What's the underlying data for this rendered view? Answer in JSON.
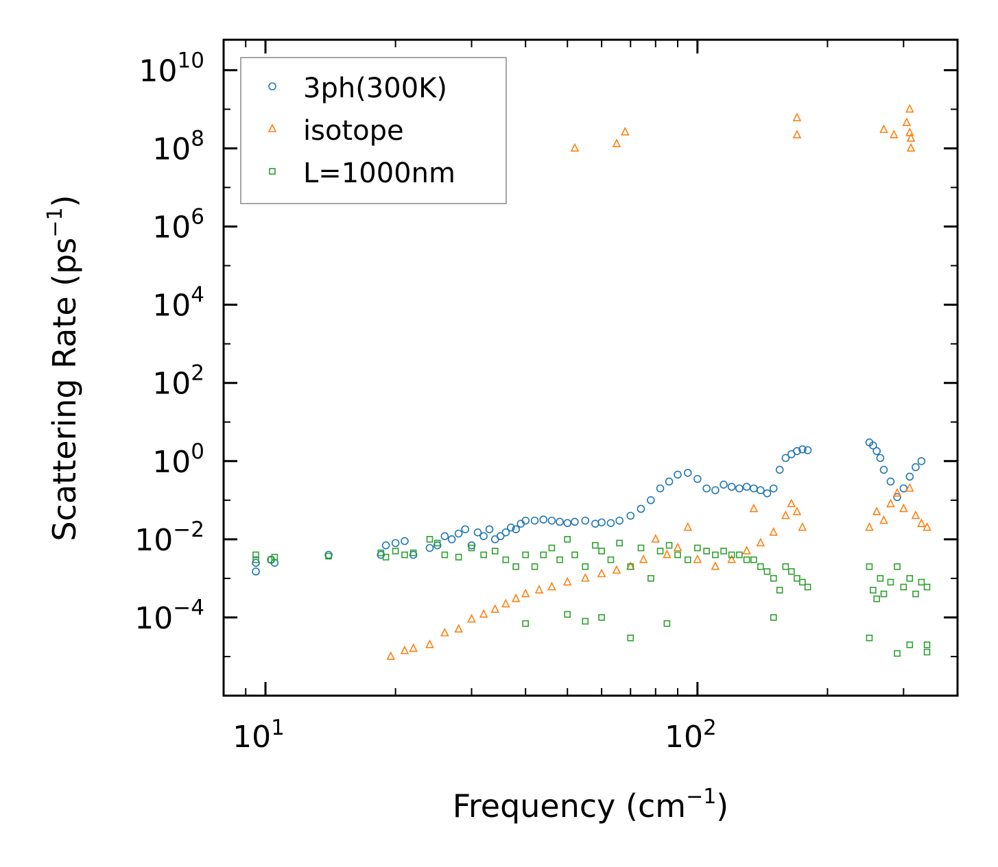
{
  "chart_data": {
    "type": "scatter",
    "title": "",
    "xlabel": "Frequency (cm",
    "xlabel_sup": "−1",
    "xlabel_close": ")",
    "ylabel": "Scattering Rate (ps",
    "ylabel_sup": "−1",
    "ylabel_close": ")",
    "xscale": "log",
    "yscale": "log",
    "xlim": [
      8,
      400
    ],
    "ylim": [
      1e-06,
      60000000000
    ],
    "x_ticks": [
      {
        "value": 10,
        "base": "10",
        "exp": "1"
      },
      {
        "value": 100,
        "base": "10",
        "exp": "2"
      }
    ],
    "y_ticks": [
      {
        "value": 0.0001,
        "base": "10",
        "exp": "−4"
      },
      {
        "value": 0.01,
        "base": "10",
        "exp": "−2"
      },
      {
        "value": 1,
        "base": "10",
        "exp": "0"
      },
      {
        "value": 100,
        "base": "10",
        "exp": "2"
      },
      {
        "value": 10000,
        "base": "10",
        "exp": "4"
      },
      {
        "value": 1000000,
        "base": "10",
        "exp": "6"
      },
      {
        "value": 100000000,
        "base": "10",
        "exp": "8"
      },
      {
        "value": 10000000000,
        "base": "10",
        "exp": "10"
      }
    ],
    "legend_position": "top-left",
    "series": [
      {
        "name": "3ph(300K)",
        "marker": "circle",
        "color": "#1f77b4",
        "points": [
          [
            9.5,
            0.0015
          ],
          [
            9.5,
            0.0025
          ],
          [
            10.3,
            0.003
          ],
          [
            10.5,
            0.0025
          ],
          [
            14,
            0.004
          ],
          [
            18.5,
            0.004
          ],
          [
            19,
            0.007
          ],
          [
            20,
            0.008
          ],
          [
            21,
            0.009
          ],
          [
            22,
            0.004
          ],
          [
            24,
            0.006
          ],
          [
            25,
            0.007
          ],
          [
            26,
            0.012
          ],
          [
            27,
            0.01
          ],
          [
            28,
            0.014
          ],
          [
            29,
            0.018
          ],
          [
            30,
            0.007
          ],
          [
            31,
            0.015
          ],
          [
            32,
            0.012
          ],
          [
            33,
            0.018
          ],
          [
            34,
            0.01
          ],
          [
            35,
            0.012
          ],
          [
            36,
            0.015
          ],
          [
            37,
            0.02
          ],
          [
            38,
            0.018
          ],
          [
            39,
            0.025
          ],
          [
            40,
            0.03
          ],
          [
            42,
            0.03
          ],
          [
            44,
            0.032
          ],
          [
            46,
            0.03
          ],
          [
            48,
            0.028
          ],
          [
            50,
            0.026
          ],
          [
            52,
            0.028
          ],
          [
            55,
            0.03
          ],
          [
            58,
            0.025
          ],
          [
            60,
            0.027
          ],
          [
            63,
            0.026
          ],
          [
            66,
            0.03
          ],
          [
            70,
            0.04
          ],
          [
            74,
            0.06
          ],
          [
            78,
            0.1
          ],
          [
            82,
            0.2
          ],
          [
            86,
            0.3
          ],
          [
            90,
            0.45
          ],
          [
            95,
            0.5
          ],
          [
            100,
            0.35
          ],
          [
            105,
            0.2
          ],
          [
            110,
            0.18
          ],
          [
            115,
            0.25
          ],
          [
            120,
            0.22
          ],
          [
            125,
            0.2
          ],
          [
            130,
            0.22
          ],
          [
            135,
            0.2
          ],
          [
            140,
            0.18
          ],
          [
            145,
            0.15
          ],
          [
            150,
            0.2
          ],
          [
            155,
            0.6
          ],
          [
            160,
            1.2
          ],
          [
            165,
            1.5
          ],
          [
            170,
            1.8
          ],
          [
            175,
            2.0
          ],
          [
            180,
            1.9
          ],
          [
            250,
            3.0
          ],
          [
            255,
            2.5
          ],
          [
            260,
            1.8
          ],
          [
            265,
            1.2
          ],
          [
            270,
            0.6
          ],
          [
            280,
            0.3
          ],
          [
            290,
            0.12
          ],
          [
            300,
            0.2
          ],
          [
            310,
            0.4
          ],
          [
            320,
            0.7
          ],
          [
            330,
            1.0
          ]
        ]
      },
      {
        "name": "isotope",
        "marker": "triangle",
        "color": "#ff7f0e",
        "points": [
          [
            19.5,
            1e-05
          ],
          [
            21,
            1.4e-05
          ],
          [
            22,
            1.6e-05
          ],
          [
            24,
            2e-05
          ],
          [
            26,
            4e-05
          ],
          [
            28,
            5e-05
          ],
          [
            30,
            9e-05
          ],
          [
            32,
            0.00012
          ],
          [
            34,
            0.00016
          ],
          [
            36,
            0.00022
          ],
          [
            38,
            0.0003
          ],
          [
            40,
            0.0004
          ],
          [
            43,
            0.0005
          ],
          [
            46,
            0.0006
          ],
          [
            50,
            0.0008
          ],
          [
            55,
            0.001
          ],
          [
            60,
            0.0013
          ],
          [
            65,
            0.0016
          ],
          [
            70,
            0.002
          ],
          [
            75,
            0.003
          ],
          [
            80,
            0.01
          ],
          [
            85,
            0.004
          ],
          [
            90,
            0.006
          ],
          [
            95,
            0.02
          ],
          [
            100,
            0.003
          ],
          [
            110,
            0.002
          ],
          [
            120,
            0.003
          ],
          [
            130,
            0.005
          ],
          [
            135,
            0.06
          ],
          [
            140,
            0.008
          ],
          [
            150,
            0.015
          ],
          [
            160,
            0.04
          ],
          [
            165,
            0.08
          ],
          [
            170,
            0.05
          ],
          [
            175,
            0.02
          ],
          [
            250,
            0.02
          ],
          [
            260,
            0.05
          ],
          [
            270,
            0.03
          ],
          [
            280,
            0.08
          ],
          [
            290,
            0.15
          ],
          [
            300,
            0.06
          ],
          [
            310,
            0.2
          ],
          [
            320,
            0.04
          ],
          [
            330,
            0.025
          ],
          [
            340,
            0.02
          ],
          [
            52,
            100000000
          ],
          [
            65,
            130000000
          ],
          [
            68,
            260000000
          ],
          [
            170,
            600000000
          ],
          [
            170,
            220000000
          ],
          [
            270,
            300000000
          ],
          [
            285,
            220000000
          ],
          [
            305,
            450000000
          ],
          [
            310,
            1000000000
          ],
          [
            310,
            250000000
          ],
          [
            312,
            180000000
          ],
          [
            312,
            100000000
          ]
        ]
      },
      {
        "name": "L=1000nm",
        "marker": "square",
        "color": "#2ca02c",
        "points": [
          [
            9.5,
            0.003
          ],
          [
            9.5,
            0.004
          ],
          [
            10.3,
            0.003
          ],
          [
            10.5,
            0.0035
          ],
          [
            14,
            0.0037
          ],
          [
            18.5,
            0.0045
          ],
          [
            19,
            0.0035
          ],
          [
            20,
            0.005
          ],
          [
            21,
            0.004
          ],
          [
            22,
            0.0045
          ],
          [
            24,
            0.01
          ],
          [
            25,
            0.008
          ],
          [
            26,
            0.004
          ],
          [
            28,
            0.0035
          ],
          [
            30,
            0.006
          ],
          [
            32,
            0.004
          ],
          [
            34,
            0.005
          ],
          [
            36,
            0.003
          ],
          [
            38,
            0.002
          ],
          [
            40,
            0.004
          ],
          [
            42,
            0.002
          ],
          [
            44,
            0.004
          ],
          [
            46,
            0.006
          ],
          [
            48,
            0.003
          ],
          [
            50,
            0.01
          ],
          [
            52,
            0.004
          ],
          [
            55,
            0.002
          ],
          [
            58,
            0.007
          ],
          [
            60,
            0.005
          ],
          [
            63,
            0.003
          ],
          [
            66,
            0.008
          ],
          [
            70,
            0.002
          ],
          [
            74,
            0.006
          ],
          [
            78,
            0.001
          ],
          [
            82,
            0.005
          ],
          [
            86,
            0.007
          ],
          [
            90,
            0.004
          ],
          [
            95,
            0.003
          ],
          [
            100,
            0.006
          ],
          [
            105,
            0.005
          ],
          [
            110,
            0.004
          ],
          [
            115,
            0.005
          ],
          [
            120,
            0.004
          ],
          [
            125,
            0.004
          ],
          [
            130,
            0.003
          ],
          [
            135,
            0.003
          ],
          [
            140,
            0.002
          ],
          [
            145,
            0.0015
          ],
          [
            150,
            0.001
          ],
          [
            155,
            0.0005
          ],
          [
            160,
            0.002
          ],
          [
            165,
            0.0015
          ],
          [
            170,
            0.001
          ],
          [
            175,
            0.0008
          ],
          [
            180,
            0.0006
          ],
          [
            250,
            0.002
          ],
          [
            255,
            0.0005
          ],
          [
            260,
            0.0003
          ],
          [
            265,
            0.001
          ],
          [
            270,
            0.0004
          ],
          [
            280,
            0.0008
          ],
          [
            290,
            0.002
          ],
          [
            300,
            0.0006
          ],
          [
            310,
            0.001
          ],
          [
            320,
            0.0004
          ],
          [
            330,
            0.0008
          ],
          [
            340,
            0.0006
          ],
          [
            40,
            7e-05
          ],
          [
            50,
            0.00012
          ],
          [
            55,
            8e-05
          ],
          [
            60,
            0.0001
          ],
          [
            70,
            3e-05
          ],
          [
            85,
            7e-05
          ],
          [
            150,
            0.0001
          ],
          [
            250,
            3e-05
          ],
          [
            290,
            1.2e-05
          ],
          [
            310,
            2e-05
          ],
          [
            340,
            2e-05
          ],
          [
            340,
            1.3e-05
          ]
        ]
      }
    ]
  }
}
